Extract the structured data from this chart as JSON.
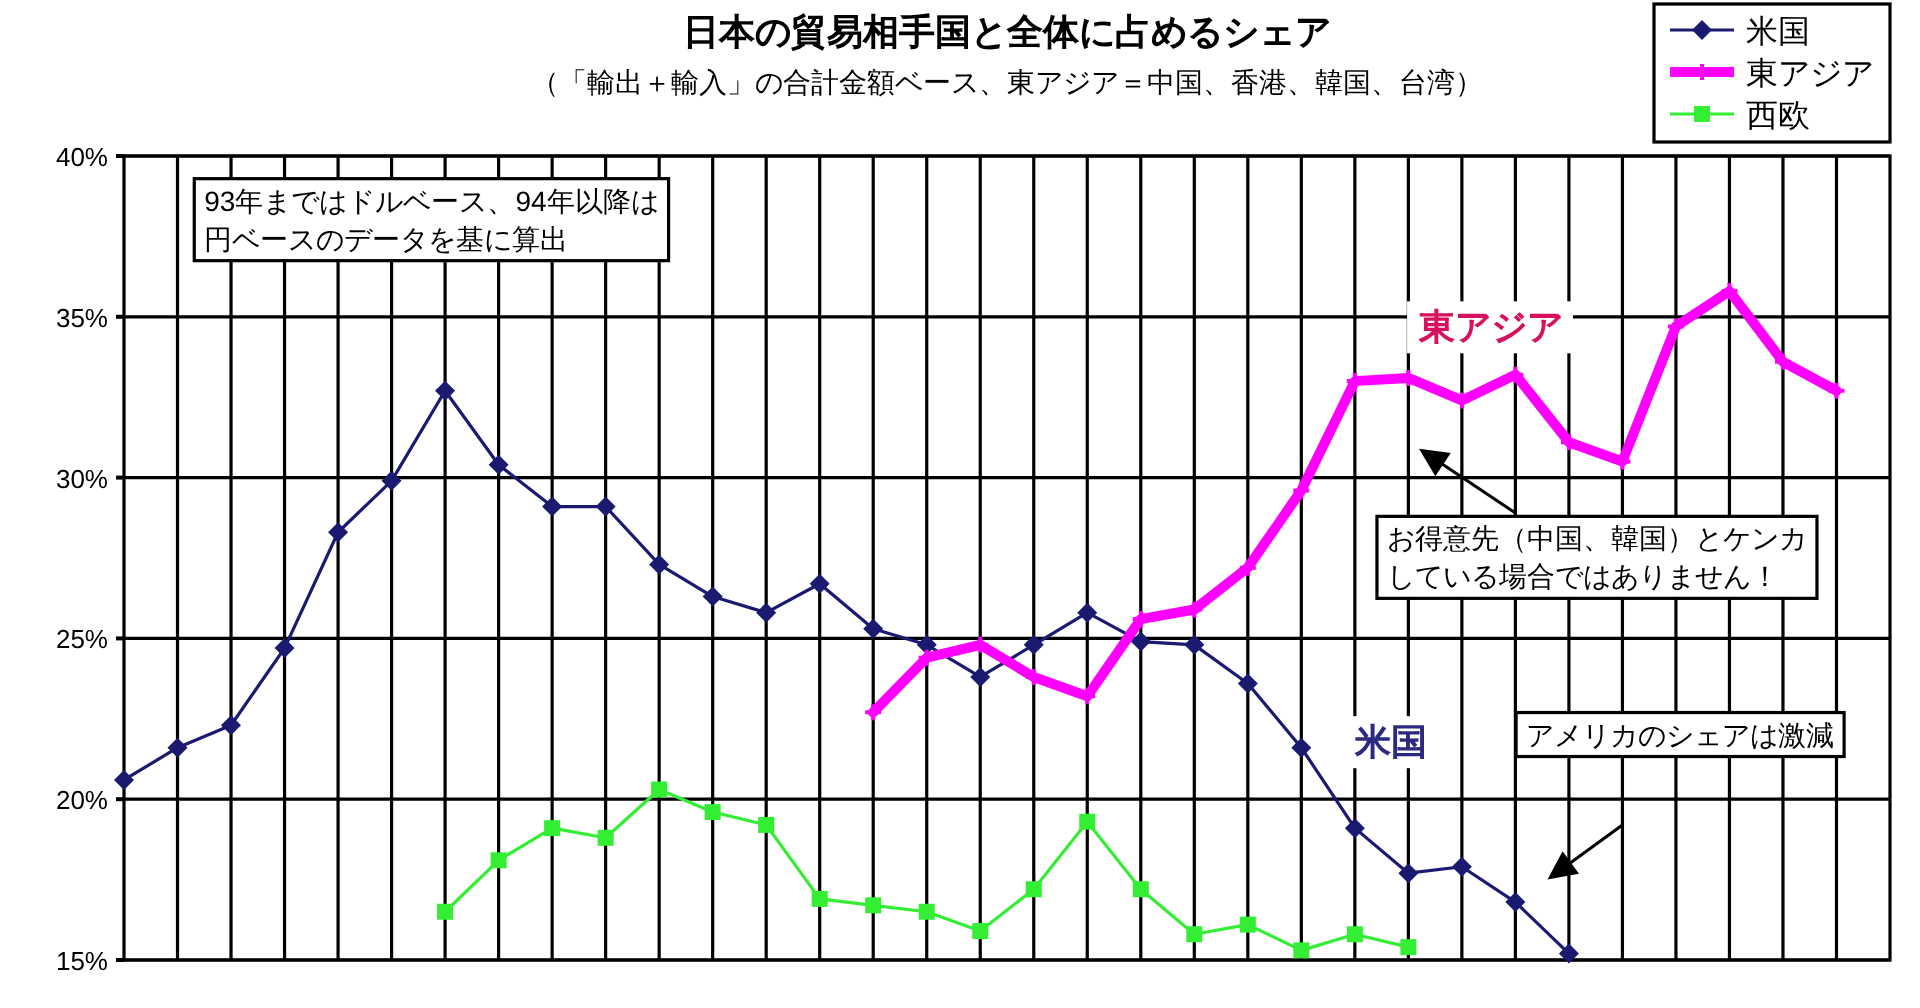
{
  "chart_data": {
    "type": "line",
    "title": "日本の貿易相手国と全体に占めるシェア",
    "subtitle": "（「輸出＋輸入」の合計金額ベース、東アジア＝中国、香港、韓国、台湾）",
    "categories": [
      null,
      null,
      null,
      null,
      null,
      null,
      null,
      null,
      null,
      null,
      null,
      null,
      null,
      null,
      null,
      null,
      null,
      null,
      null,
      null,
      null,
      null,
      null,
      null,
      null,
      null,
      null,
      null,
      null,
      null,
      null,
      null,
      null
    ],
    "series": [
      {
        "name": "米国",
        "color": "#1a1a70",
        "marker": "diamond",
        "values": [
          20.6,
          21.6,
          22.3,
          24.7,
          28.3,
          29.9,
          32.7,
          30.4,
          29.1,
          29.1,
          27.3,
          26.3,
          25.8,
          26.7,
          25.3,
          24.8,
          23.8,
          24.8,
          25.8,
          24.9,
          24.8,
          23.6,
          21.6,
          19.1,
          17.7,
          17.9,
          16.8,
          15.2,
          null,
          null,
          null,
          null,
          null
        ]
      },
      {
        "name": "東アジア",
        "color": "#ff00ff",
        "marker": "cross",
        "values": [
          null,
          null,
          null,
          null,
          null,
          null,
          null,
          null,
          null,
          null,
          null,
          null,
          null,
          null,
          22.7,
          24.4,
          24.8,
          23.8,
          23.2,
          25.6,
          25.9,
          27.2,
          29.6,
          33.0,
          33.1,
          32.4,
          33.2,
          31.1,
          30.5,
          34.7,
          35.8,
          33.6,
          32.7
        ]
      },
      {
        "name": "西欧",
        "color": "#33ee33",
        "marker": "square",
        "values": [
          null,
          null,
          null,
          null,
          null,
          null,
          16.5,
          18.1,
          19.1,
          18.8,
          20.3,
          19.6,
          19.2,
          16.9,
          16.7,
          16.5,
          15.9,
          17.2,
          19.3,
          17.2,
          15.8,
          16.1,
          15.3,
          15.8,
          15.4,
          null,
          null,
          null,
          null,
          null,
          null,
          null,
          null
        ]
      }
    ],
    "ylim": [
      15,
      40
    ],
    "yticks": [
      {
        "value": 15,
        "label": "15%"
      },
      {
        "value": 20,
        "label": "20%"
      },
      {
        "value": 25,
        "label": "25%"
      },
      {
        "value": 30,
        "label": "30%"
      },
      {
        "value": 35,
        "label": "35%"
      },
      {
        "value": 40,
        "label": "40%"
      }
    ],
    "grid": true,
    "legend": "top right",
    "annotations": [
      "93年まではドルベース、94年以降は円ベースのデータを基に算出",
      "お得意先（中国、韓国）とケンカしている場合ではありません！",
      "アメリカのシェアは激減",
      "東アジア",
      "米国"
    ]
  }
}
